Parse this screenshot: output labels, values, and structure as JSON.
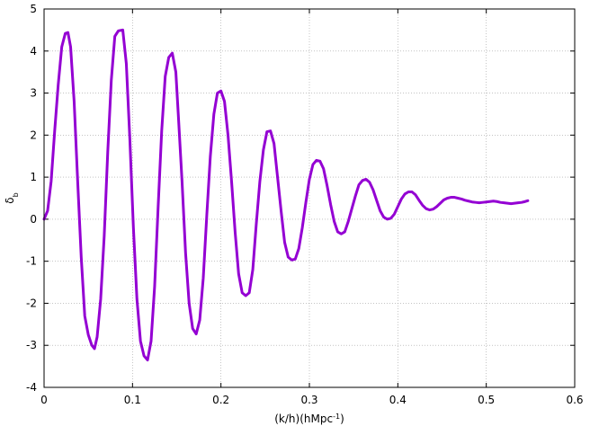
{
  "chart_data": {
    "type": "line",
    "xlabel_main": "(k/h)(hMpc",
    "xlabel_sup": "-1",
    "xlabel_tail": ")",
    "ylabel_main": "δ",
    "ylabel_sub": "b",
    "xlim": [
      0,
      0.6
    ],
    "ylim": [
      -4,
      5
    ],
    "xticks": [
      0,
      0.1,
      0.2,
      0.3,
      0.4,
      0.5,
      0.6
    ],
    "xtick_labels": [
      "0",
      "0.1",
      "0.2",
      "0.3",
      "0.4",
      "0.5",
      "0.6"
    ],
    "yticks": [
      -4,
      -3,
      -2,
      -1,
      0,
      1,
      2,
      3,
      4,
      5
    ],
    "ytick_labels": [
      "-4",
      "-3",
      "-2",
      "-1",
      "0",
      "1",
      "2",
      "3",
      "4",
      "5"
    ],
    "grid": true,
    "line_color": "#9400d3",
    "series": [
      {
        "x": [
          0.0,
          0.004,
          0.008,
          0.012,
          0.016,
          0.02,
          0.024,
          0.027,
          0.03,
          0.034,
          0.038,
          0.042,
          0.046,
          0.05,
          0.054,
          0.057,
          0.06,
          0.064,
          0.068,
          0.072,
          0.076,
          0.08,
          0.084,
          0.089,
          0.093,
          0.097,
          0.101,
          0.105,
          0.109,
          0.113,
          0.117,
          0.121,
          0.125,
          0.129,
          0.133,
          0.137,
          0.141,
          0.145,
          0.149,
          0.152,
          0.156,
          0.16,
          0.164,
          0.168,
          0.172,
          0.176,
          0.18,
          0.184,
          0.188,
          0.192,
          0.196,
          0.2,
          0.204,
          0.208,
          0.212,
          0.216,
          0.22,
          0.224,
          0.228,
          0.232,
          0.236,
          0.24,
          0.244,
          0.248,
          0.252,
          0.256,
          0.26,
          0.264,
          0.268,
          0.272,
          0.276,
          0.28,
          0.284,
          0.288,
          0.292,
          0.296,
          0.3,
          0.304,
          0.308,
          0.312,
          0.316,
          0.32,
          0.324,
          0.328,
          0.332,
          0.336,
          0.34,
          0.344,
          0.348,
          0.352,
          0.356,
          0.36,
          0.364,
          0.368,
          0.372,
          0.376,
          0.38,
          0.384,
          0.388,
          0.392,
          0.396,
          0.4,
          0.404,
          0.408,
          0.412,
          0.416,
          0.42,
          0.424,
          0.428,
          0.432,
          0.436,
          0.44,
          0.444,
          0.448,
          0.452,
          0.456,
          0.46,
          0.464,
          0.468,
          0.472,
          0.476,
          0.48,
          0.484,
          0.488,
          0.492,
          0.496,
          0.5,
          0.504,
          0.508,
          0.512,
          0.516,
          0.52,
          0.524,
          0.528,
          0.532,
          0.536,
          0.54,
          0.544,
          0.547
        ],
        "y": [
          0.0,
          0.2,
          0.9,
          2.1,
          3.2,
          4.1,
          4.42,
          4.44,
          4.1,
          2.8,
          0.9,
          -0.9,
          -2.3,
          -2.75,
          -3.0,
          -3.08,
          -2.8,
          -1.9,
          -0.4,
          1.6,
          3.3,
          4.35,
          4.48,
          4.5,
          3.7,
          1.9,
          -0.2,
          -1.9,
          -2.9,
          -3.25,
          -3.35,
          -2.9,
          -1.6,
          0.3,
          2.1,
          3.4,
          3.85,
          3.95,
          3.5,
          2.4,
          0.9,
          -0.8,
          -2.0,
          -2.6,
          -2.73,
          -2.4,
          -1.4,
          0.1,
          1.5,
          2.5,
          3.0,
          3.05,
          2.8,
          2.0,
          0.9,
          -0.3,
          -1.3,
          -1.75,
          -1.82,
          -1.75,
          -1.2,
          -0.1,
          0.9,
          1.65,
          2.08,
          2.1,
          1.8,
          1.0,
          0.2,
          -0.55,
          -0.9,
          -0.97,
          -0.95,
          -0.7,
          -0.2,
          0.4,
          0.95,
          1.3,
          1.4,
          1.38,
          1.2,
          0.8,
          0.35,
          -0.05,
          -0.3,
          -0.35,
          -0.3,
          -0.05,
          0.25,
          0.55,
          0.82,
          0.92,
          0.95,
          0.88,
          0.7,
          0.45,
          0.2,
          0.05,
          0.0,
          0.02,
          0.12,
          0.3,
          0.48,
          0.6,
          0.65,
          0.65,
          0.58,
          0.45,
          0.33,
          0.25,
          0.22,
          0.24,
          0.3,
          0.38,
          0.46,
          0.5,
          0.52,
          0.52,
          0.5,
          0.48,
          0.45,
          0.43,
          0.41,
          0.4,
          0.39,
          0.4,
          0.41,
          0.42,
          0.43,
          0.42,
          0.4,
          0.39,
          0.38,
          0.37,
          0.38,
          0.39,
          0.4,
          0.42,
          0.44
        ]
      }
    ]
  }
}
